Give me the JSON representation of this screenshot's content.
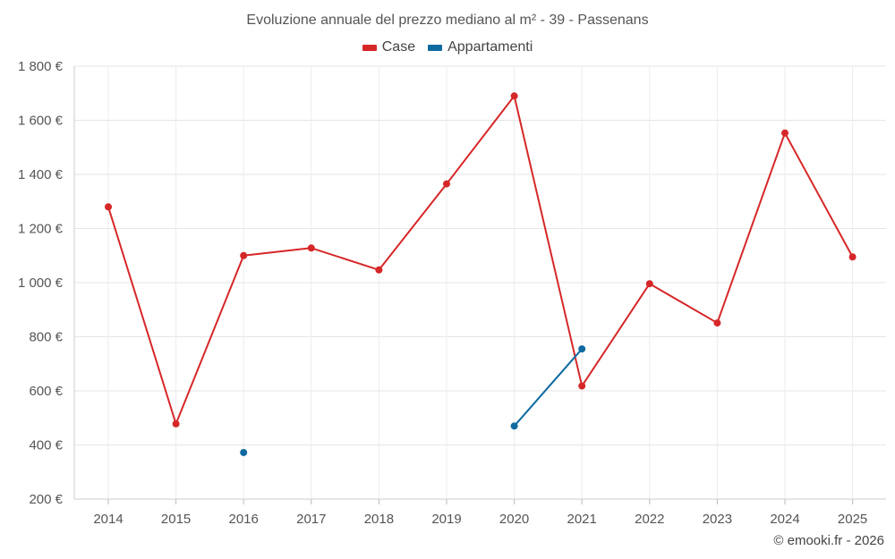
{
  "chart_data": {
    "type": "line",
    "title": "Evoluzione annuale del prezzo mediano al m² - 39 - Passenans",
    "categories": [
      "2014",
      "2015",
      "2016",
      "2017",
      "2018",
      "2019",
      "2020",
      "2021",
      "2022",
      "2023",
      "2024",
      "2025"
    ],
    "series": [
      {
        "name": "Case",
        "color": "#d62728",
        "values": [
          1280,
          478,
          1100,
          1128,
          1047,
          1365,
          1690,
          618,
          996,
          851,
          1553,
          1095
        ]
      },
      {
        "name": "Appartamenti",
        "color": "#0f6aa0",
        "values": [
          null,
          null,
          372,
          null,
          null,
          null,
          470,
          755,
          null,
          null,
          null,
          null
        ]
      }
    ],
    "ylim": [
      200,
      1800
    ],
    "yticks": [
      200,
      400,
      600,
      800,
      1000,
      1200,
      1400,
      1600,
      1800
    ],
    "ytick_labels": [
      "200 €",
      "400 €",
      "600 €",
      "800 €",
      "1 000 €",
      "1 200 €",
      "1 400 €",
      "1 600 €",
      "1 800 €"
    ],
    "xlabel": "",
    "ylabel": "",
    "grid": true,
    "legend_position": "top-center"
  },
  "credit": "© emooki.fr - 2026"
}
